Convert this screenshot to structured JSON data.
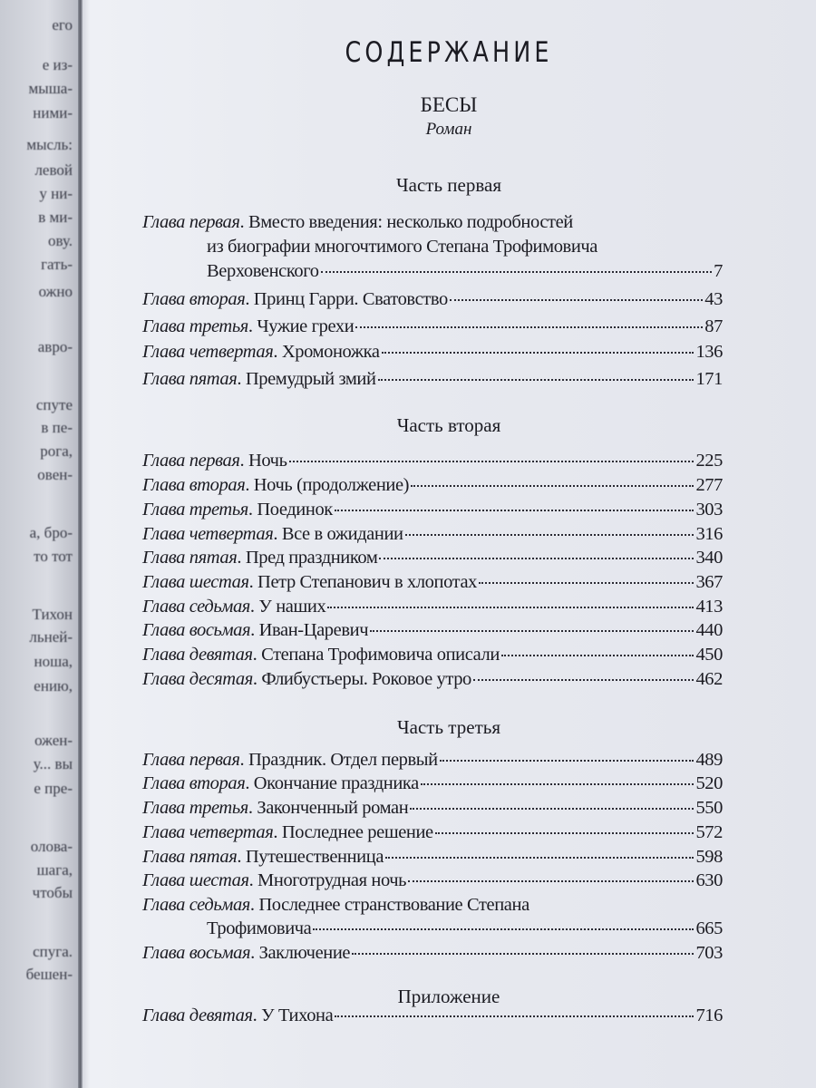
{
  "left_page_fragments": [
    "его",
    "е из-",
    "мыша-",
    "ними-",
    "мысль:",
    "левой",
    "у ни-",
    "в ми-",
    "ову.",
    "гать-",
    "ожно",
    "авро-",
    "спуте",
    "в пе-",
    "рога,",
    "овен-",
    "а, бро-",
    "то тот",
    "Тихон",
    "льней-",
    "ноша,",
    "ению,",
    "ожен-",
    "у... вы",
    "е пре-",
    "олова-",
    "шага,",
    "чтобы",
    "спуга.",
    "бешен-"
  ],
  "title": "СОДЕРЖАНИЕ",
  "book_title": "БЕСЫ",
  "genre": "Роман",
  "parts": [
    {
      "heading": "Часть первая",
      "chapters": [
        {
          "label": "Глава первая",
          "lines": [
            "Вместо введения: несколько подробностей",
            "из биографии многочтимого Степана Трофимовича",
            "Верховенского"
          ],
          "page": "7"
        },
        {
          "label": "Глава вторая",
          "lines": [
            "Принц Гарри. Сватовство"
          ],
          "page": "43"
        },
        {
          "label": "Глава третья",
          "lines": [
            "Чужие грехи"
          ],
          "page": "87"
        },
        {
          "label": "Глава четвертая",
          "lines": [
            "Хромоножка"
          ],
          "page": "136"
        },
        {
          "label": "Глава пятая",
          "lines": [
            "Премудрый змий"
          ],
          "page": "171"
        }
      ]
    },
    {
      "heading": "Часть вторая",
      "chapters": [
        {
          "label": "Глава первая",
          "lines": [
            "Ночь"
          ],
          "page": "225"
        },
        {
          "label": "Глава вторая",
          "lines": [
            "Ночь (продолжение)"
          ],
          "page": "277"
        },
        {
          "label": "Глава третья",
          "lines": [
            "Поединок"
          ],
          "page": "303"
        },
        {
          "label": "Глава четвертая",
          "lines": [
            "Все в ожидании"
          ],
          "page": "316"
        },
        {
          "label": "Глава пятая",
          "lines": [
            "Пред праздником"
          ],
          "page": "340"
        },
        {
          "label": "Глава шестая",
          "lines": [
            "Петр Степанович в хлопотах"
          ],
          "page": "367"
        },
        {
          "label": "Глава седьмая",
          "lines": [
            "У наших"
          ],
          "page": "413"
        },
        {
          "label": "Глава восьмая",
          "lines": [
            "Иван-Царевич"
          ],
          "page": "440"
        },
        {
          "label": "Глава девятая",
          "lines": [
            "Степана Трофимовича описали"
          ],
          "page": "450"
        },
        {
          "label": "Глава десятая",
          "lines": [
            "Флибустьеры. Роковое утро"
          ],
          "page": "462"
        }
      ]
    },
    {
      "heading": "Часть третья",
      "chapters": [
        {
          "label": "Глава первая",
          "lines": [
            "Праздник. Отдел первый"
          ],
          "page": "489"
        },
        {
          "label": "Глава вторая",
          "lines": [
            "Окончание праздника"
          ],
          "page": "520"
        },
        {
          "label": "Глава третья",
          "lines": [
            "Законченный роман"
          ],
          "page": "550"
        },
        {
          "label": "Глава четвертая",
          "lines": [
            "Последнее решение"
          ],
          "page": "572"
        },
        {
          "label": "Глава пятая",
          "lines": [
            "Путешественница"
          ],
          "page": "598"
        },
        {
          "label": "Глава шестая",
          "lines": [
            "Многотрудная ночь"
          ],
          "page": "630"
        },
        {
          "label": "Глава седьмая",
          "lines": [
            "Последнее странствование Степана",
            "Трофимовича"
          ],
          "page": "665"
        },
        {
          "label": "Глава восьмая",
          "lines": [
            "Заключение"
          ],
          "page": "703"
        }
      ]
    },
    {
      "heading": "Приложение",
      "chapters": [
        {
          "label": "Глава девятая",
          "lines": [
            "У Тихона"
          ],
          "page": "716"
        }
      ]
    }
  ]
}
